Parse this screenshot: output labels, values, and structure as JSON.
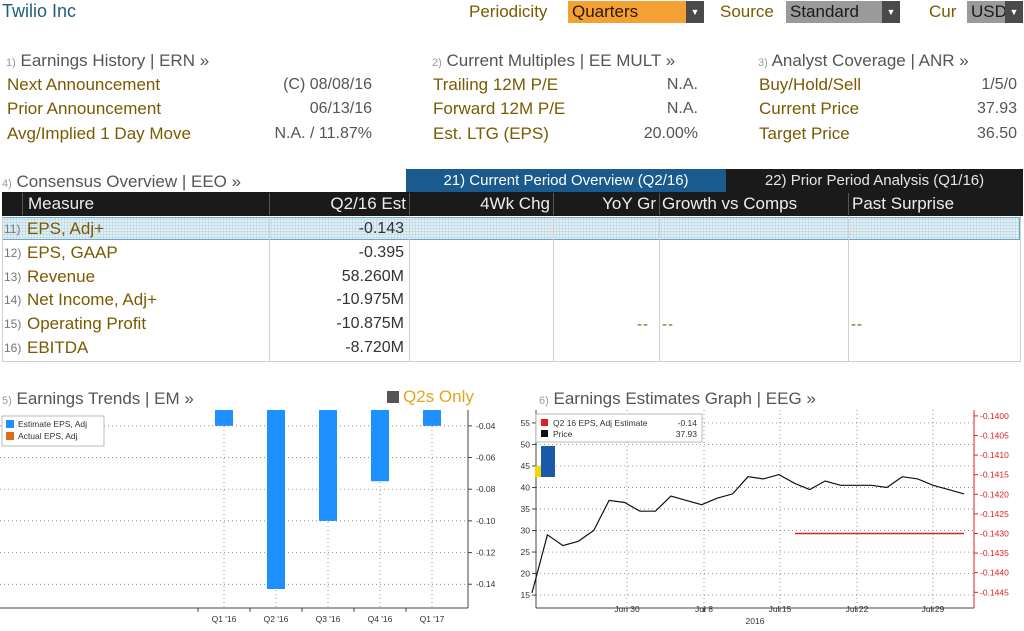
{
  "header": {
    "company": "Twilio Inc",
    "periodicity_label": "Periodicity",
    "periodicity_value": "Quarters",
    "source_label": "Source",
    "source_value": "Standard",
    "currency_label": "Cur",
    "currency_value": "USD"
  },
  "earnings_history": {
    "num": "1)",
    "title": "Earnings History | ERN »",
    "rows": [
      {
        "label": "Next Announcement",
        "value": "(C)  08/08/16"
      },
      {
        "label": "Prior Announcement",
        "value": "06/13/16"
      },
      {
        "label": "Avg/Implied 1 Day Move",
        "value": "N.A. / 11.87%"
      }
    ]
  },
  "current_multiples": {
    "num": "2)",
    "title": "Current Multiples | EE MULT »",
    "rows": [
      {
        "label": "Trailing 12M P/E",
        "value": "N.A."
      },
      {
        "label": "Forward 12M P/E",
        "value": "N.A."
      },
      {
        "label": "Est. LTG (EPS)",
        "value": "20.00%"
      }
    ]
  },
  "analyst_coverage": {
    "num": "3)",
    "title": "Analyst Coverage | ANR »",
    "rows": [
      {
        "label": "Buy/Hold/Sell",
        "value": "1/5/0"
      },
      {
        "label": "Current Price",
        "value": "37.93"
      },
      {
        "label": "Target Price",
        "value": "36.50"
      }
    ]
  },
  "consensus": {
    "num": "4)",
    "title": "Consensus Overview | EEO »",
    "tabs": {
      "current": "21) Current Period Overview (Q2/16)",
      "prior": "22) Prior Period Analysis (Q1/16)"
    },
    "columns": {
      "measure": "Measure",
      "estimate": "Q2/16 Est",
      "four_wk": "4Wk Chg",
      "yoy": "YoY Gr",
      "growth": "Growth vs Comps",
      "surprise": "Past Surprise"
    },
    "rows": [
      {
        "num": "11)",
        "label": "EPS, Adj+",
        "value": "-0.143"
      },
      {
        "num": "12)",
        "label": "EPS, GAAP",
        "value": "-0.395"
      },
      {
        "num": "13)",
        "label": "Revenue",
        "value": "58.260M"
      },
      {
        "num": "14)",
        "label": "Net Income, Adj+",
        "value": "-10.975M"
      },
      {
        "num": "15)",
        "label": "Operating Profit",
        "value": "-10.875M"
      },
      {
        "num": "16)",
        "label": "EBITDA",
        "value": "-8.720M"
      }
    ],
    "dash_yoy": "--",
    "dash_growth": "--",
    "dash_surprise": "--"
  },
  "earnings_trends": {
    "num": "5)",
    "title": "Earnings Trends | EM »",
    "toggle_label": "Q2s Only"
  },
  "earnings_estimates": {
    "num": "6)",
    "title": "Earnings Estimates Graph | EEG »"
  },
  "colors": {
    "estimate_bar": "#1e90ff",
    "actual_bar": "#e06a1a",
    "price_line": "#111111",
    "estimate_line": "#e02020",
    "tab_active": "#1a5a8c",
    "dropdown_active": "#f5a033"
  },
  "chart_data": [
    {
      "type": "bar",
      "categories": [
        "Q1 '16",
        "Q2 '16",
        "Q3 '16",
        "Q4 '16",
        "Q1 '17"
      ],
      "series": [
        {
          "name": "Estimate EPS, Adj",
          "values": [
            -0.04,
            -0.143,
            -0.1,
            -0.075,
            -0.04
          ]
        },
        {
          "name": "Actual EPS, Adj",
          "values": [
            null,
            null,
            null,
            null,
            null
          ]
        }
      ],
      "yticks": [
        -0.04,
        -0.06,
        -0.08,
        -0.1,
        -0.12,
        -0.14
      ],
      "ylim": [
        -0.155,
        -0.03
      ],
      "legend": "top-left",
      "grid": true
    },
    {
      "type": "line",
      "x_ticks": [
        "Jun 30",
        "Jul 8",
        "Jul 15",
        "Jul 22",
        "Jul 29"
      ],
      "x_year": "2016",
      "left_yticks": [
        15,
        20,
        25,
        30,
        35,
        40,
        45,
        50,
        55
      ],
      "left_ylim": [
        12,
        58
      ],
      "right_yticks": [
        -0.14,
        -0.1405,
        -0.141,
        -0.1415,
        -0.142,
        -0.1425,
        -0.143,
        -0.1435,
        -0.144,
        -0.1445
      ],
      "right_ylim": [
        -0.1449,
        -0.13985
      ],
      "series": [
        {
          "name": "Price",
          "axis": "left",
          "last_value": "37.93",
          "values": [
            15.5,
            29,
            26.5,
            27.5,
            30,
            37,
            36.5,
            34.5,
            34.5,
            38,
            37,
            36,
            37.5,
            38.5,
            42.5,
            42,
            43,
            41,
            39.5,
            41.5,
            40.5,
            40.5,
            40.5,
            40,
            42.5,
            42,
            40.5,
            39.5,
            38.5
          ]
        },
        {
          "name": "Q2 16 EPS, Adj Estimate",
          "axis": "right",
          "last_value": "-0.14",
          "values": [
            -0.143,
            -0.143,
            -0.143,
            -0.143,
            -0.143,
            -0.143,
            -0.143,
            -0.143,
            -0.143,
            -0.143,
            -0.143,
            -0.143,
            -0.143
          ]
        }
      ],
      "legend": "top-left",
      "grid": true
    }
  ]
}
